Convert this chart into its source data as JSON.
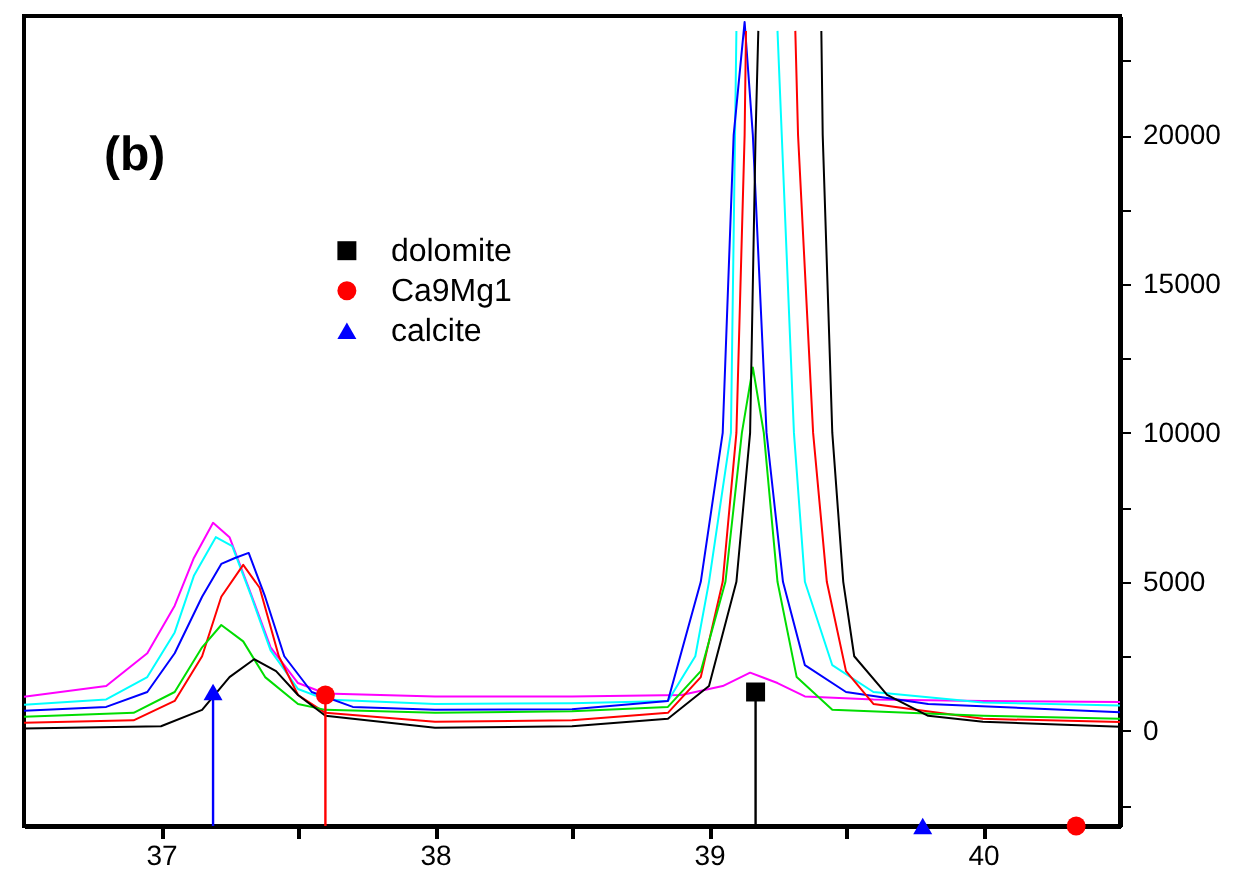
{
  "chart_data": {
    "type": "line",
    "annotations": [
      "(b)"
    ],
    "xlim": [
      36.5,
      40.5
    ],
    "xticks": [
      37,
      {
        "value": 37.5,
        "label": null
      },
      38,
      {
        "value": 38.5,
        "label": null
      },
      39,
      {
        "value": 39.5,
        "label": null
      },
      40
    ],
    "ylim": [
      -3200,
      24000
    ],
    "yticks": [
      {
        "value": -2500,
        "label": null
      },
      0,
      {
        "value": 2500,
        "label": null
      },
      5000,
      {
        "value": 7500,
        "label": null
      },
      10000,
      {
        "value": 12500,
        "label": null
      },
      15000,
      {
        "value": 17500,
        "label": null
      },
      20000,
      {
        "value": 22500,
        "label": null
      }
    ],
    "grid": false,
    "legend": "top",
    "marker": "none",
    "line_style": "solid",
    "series": [
      {
        "color": "#ff00ff",
        "x": [
          36.5,
          36.8,
          36.95,
          37.05,
          37.12,
          37.19,
          37.25,
          37.32,
          37.4,
          37.5,
          37.6,
          38.0,
          38.5,
          38.9,
          39.05,
          39.15,
          39.25,
          39.35,
          39.6,
          40.0,
          40.5
        ],
        "values": [
          1140,
          1500,
          2600,
          4200,
          5800,
          6980,
          6500,
          4800,
          2800,
          1600,
          1250,
          1150,
          1150,
          1200,
          1500,
          1950,
          1600,
          1150,
          1050,
          1000,
          960
        ]
      },
      {
        "color": "#00ffff",
        "x": [
          36.5,
          36.8,
          36.95,
          37.05,
          37.12,
          37.2,
          37.26,
          37.33,
          37.4,
          37.5,
          37.6,
          38.0,
          38.5,
          38.85,
          38.95,
          39.0,
          39.08,
          39.095,
          39.1,
          39.17,
          39.25,
          39.31,
          39.35,
          39.45,
          39.6,
          40.0,
          40.5
        ],
        "values": [
          870,
          1050,
          1800,
          3300,
          5200,
          6500,
          6200,
          4500,
          2700,
          1400,
          1050,
          900,
          920,
          1000,
          2500,
          5000,
          10000,
          20000,
          23500,
          null,
          23500,
          10000,
          5000,
          2200,
          1300,
          950,
          850
        ]
      },
      {
        "color": "#0000ff",
        "x": [
          36.5,
          36.8,
          36.95,
          37.05,
          37.15,
          37.22,
          37.27,
          37.32,
          37.38,
          37.45,
          37.55,
          37.7,
          38.0,
          38.5,
          38.85,
          38.97,
          39.05,
          39.09,
          39.13,
          39.16,
          39.21,
          39.27,
          39.35,
          39.5,
          39.8,
          40.5
        ],
        "values": [
          670,
          800,
          1300,
          2600,
          4500,
          5600,
          5800,
          5970,
          4500,
          2500,
          1300,
          800,
          700,
          720,
          1000,
          5000,
          10000,
          20000,
          23800,
          20000,
          10000,
          5000,
          2200,
          1300,
          900,
          620
        ]
      },
      {
        "color": "#ff0000",
        "x": [
          36.5,
          36.9,
          37.05,
          37.15,
          37.22,
          37.3,
          37.36,
          37.43,
          37.5,
          37.6,
          38.0,
          38.5,
          38.85,
          38.97,
          39.05,
          39.1,
          39.13,
          39.135,
          39.22,
          39.315,
          39.325,
          39.38,
          39.43,
          39.5,
          39.6,
          40.0,
          40.5
        ],
        "values": [
          270,
          350,
          1000,
          2500,
          4500,
          5570,
          4800,
          2500,
          1200,
          600,
          300,
          350,
          600,
          1800,
          5000,
          10000,
          20000,
          23500,
          null,
          23500,
          20000,
          10000,
          5000,
          2000,
          900,
          400,
          290
        ]
      },
      {
        "color": "#00dd00",
        "x": [
          36.5,
          36.9,
          37.05,
          37.15,
          37.22,
          37.3,
          37.38,
          37.5,
          37.6,
          38.0,
          38.5,
          38.85,
          38.97,
          39.06,
          39.12,
          39.16,
          39.2,
          39.25,
          39.32,
          39.45,
          40.0,
          40.5
        ],
        "values": [
          470,
          600,
          1300,
          2800,
          3550,
          3000,
          1800,
          900,
          700,
          600,
          650,
          800,
          2000,
          5000,
          10000,
          12200,
          10000,
          5000,
          1800,
          700,
          500,
          400
        ]
      },
      {
        "color": "#000000",
        "x": [
          36.5,
          37.0,
          37.15,
          37.25,
          37.34,
          37.42,
          37.5,
          37.6,
          38.0,
          38.5,
          38.85,
          39.0,
          39.1,
          39.15,
          39.17,
          39.18,
          39.3,
          39.41,
          39.415,
          39.45,
          39.49,
          39.53,
          39.65,
          39.8,
          40.0,
          40.5
        ],
        "values": [
          70,
          150,
          700,
          1800,
          2400,
          2000,
          1200,
          500,
          100,
          150,
          400,
          1500,
          5000,
          10000,
          20000,
          23500,
          null,
          23500,
          20000,
          10000,
          5000,
          2500,
          1200,
          500,
          300,
          130
        ]
      },
      {
        "type": "scatter",
        "name": "dolomite",
        "color": "#000000",
        "marker": "square",
        "x": [
          39.17
        ],
        "values": [
          1300
        ],
        "errors": [
          [
            -3200,
            1300
          ]
        ]
      },
      {
        "type": "scatter",
        "name": "Ca9Mg1",
        "color": "#ff0000",
        "marker": "circle",
        "x": [
          37.6,
          40.34
        ],
        "values": [
          1200,
          -3200
        ],
        "errors": [
          [
            -3200,
            1200
          ],
          null
        ]
      },
      {
        "type": "scatter",
        "name": "calcite",
        "color": "#0000ff",
        "marker": "triangle",
        "x": [
          37.19,
          39.78
        ],
        "values": [
          1300,
          -3200
        ],
        "errors": [
          [
            -3200,
            1300
          ],
          null
        ]
      }
    ]
  }
}
